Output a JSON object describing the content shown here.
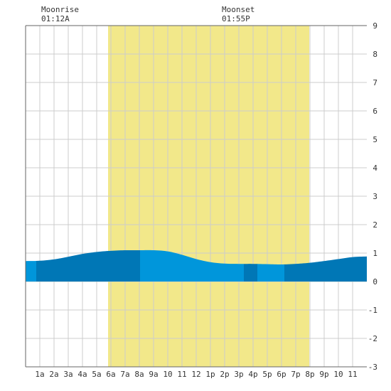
{
  "moonrise": {
    "label": "Moonrise",
    "time": "01:12A"
  },
  "moonset": {
    "label": "Moonset",
    "time": "01:55P"
  },
  "chart_data": {
    "type": "area",
    "title": "",
    "xlabel": "",
    "ylabel": "",
    "xlim": [
      0,
      24
    ],
    "ylim": [
      -3,
      9
    ],
    "grid": true,
    "x_ticks": [
      1,
      2,
      3,
      4,
      5,
      6,
      7,
      8,
      9,
      10,
      11,
      12,
      13,
      14,
      15,
      16,
      17,
      18,
      19,
      20,
      21,
      22,
      23
    ],
    "x_tick_labels": [
      "1a",
      "2a",
      "3a",
      "4a",
      "5a",
      "6a",
      "7a",
      "8a",
      "9a",
      "10",
      "11",
      "12",
      "1p",
      "2p",
      "3p",
      "4p",
      "5p",
      "6p",
      "7p",
      "8p",
      "9p",
      "10",
      "11"
    ],
    "y_ticks": [
      -3,
      -2,
      -1,
      0,
      1,
      2,
      3,
      4,
      5,
      6,
      7,
      8,
      9
    ],
    "daylight": {
      "start": 5.8,
      "end": 19.95,
      "color": "#f2e88a"
    },
    "colors": {
      "background": "#ffffff",
      "grid": "#cccccc",
      "tide_dark": "#0077b6",
      "tide_light": "#0096db"
    },
    "series": [
      {
        "x": [
          0,
          1,
          2,
          3,
          4,
          5,
          6,
          7,
          8,
          9,
          10,
          11,
          12,
          13,
          14,
          15,
          16,
          17,
          18,
          19,
          20,
          21,
          22,
          23,
          24
        ],
        "values": [
          0.72,
          0.73,
          0.78,
          0.87,
          0.97,
          1.04,
          1.08,
          1.1,
          1.1,
          1.1,
          1.06,
          0.94,
          0.79,
          0.68,
          0.63,
          0.62,
          0.62,
          0.61,
          0.6,
          0.62,
          0.66,
          0.72,
          0.79,
          0.86,
          0.88
        ]
      }
    ],
    "color_bands": [
      {
        "start": 0,
        "end": 0.75,
        "color": "light"
      },
      {
        "start": 0.75,
        "end": 8.05,
        "color": "dark"
      },
      {
        "start": 8.05,
        "end": 15.35,
        "color": "light"
      },
      {
        "start": 15.35,
        "end": 16.3,
        "color": "dark"
      },
      {
        "start": 16.3,
        "end": 18.2,
        "color": "light"
      },
      {
        "start": 18.2,
        "end": 24,
        "color": "dark"
      }
    ]
  }
}
